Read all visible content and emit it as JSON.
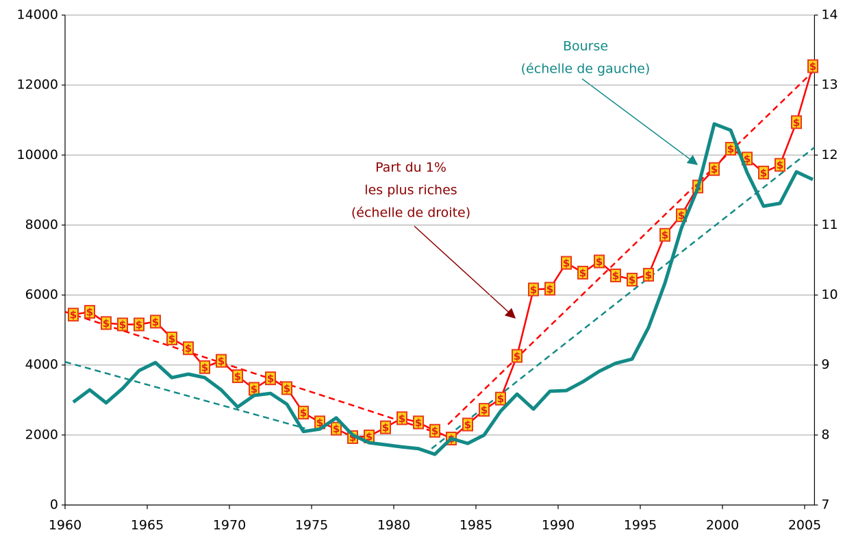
{
  "chart_data": {
    "type": "line",
    "x": [
      1960.5,
      1961.5,
      1962.5,
      1963.5,
      1964.5,
      1965.5,
      1966.5,
      1967.5,
      1968.5,
      1969.5,
      1970.5,
      1971.5,
      1972.5,
      1973.5,
      1974.5,
      1975.5,
      1976.5,
      1977.5,
      1978.5,
      1979.5,
      1980.5,
      1981.5,
      1982.5,
      1983.5,
      1984.5,
      1985.5,
      1986.5,
      1987.5,
      1988.5,
      1989.5,
      1990.5,
      1991.5,
      1992.5,
      1993.5,
      1994.5,
      1995.5,
      1996.5,
      1997.5,
      1998.5,
      1999.5,
      2000.5,
      2001.5,
      2002.5,
      2003.5,
      2004.5,
      2005.5
    ],
    "series": [
      {
        "color": "#ff0000",
        "axis": "y2",
        "marker": "$",
        "values": [
          9.72,
          9.76,
          9.6,
          9.58,
          9.58,
          9.62,
          9.38,
          9.24,
          8.97,
          9.06,
          8.84,
          8.66,
          8.81,
          8.67,
          8.32,
          8.18,
          8.09,
          7.97,
          7.98,
          8.11,
          8.24,
          8.18,
          8.06,
          7.95,
          8.15,
          8.36,
          8.52,
          9.13,
          10.08,
          10.09,
          10.46,
          10.32,
          10.48,
          10.28,
          10.22,
          10.29,
          10.86,
          11.14,
          11.55,
          11.8,
          12.09,
          11.95,
          11.75,
          11.86,
          12.47,
          13.27
        ]
      },
      {
        "color": "#138a87",
        "values": [
          2940,
          3290,
          2920,
          3330,
          3840,
          4070,
          3640,
          3740,
          3640,
          3290,
          2800,
          3130,
          3190,
          2880,
          2100,
          2170,
          2490,
          2000,
          1780,
          1720,
          1660,
          1610,
          1450,
          1900,
          1760,
          2000,
          2680,
          3170,
          2740,
          3250,
          3270,
          3520,
          3820,
          4050,
          4170,
          5070,
          6340,
          7910,
          9050,
          10890,
          10710,
          9500,
          8540,
          8620,
          9520,
          9300
        ]
      }
    ],
    "trends": [
      {
        "color": "#ff0000",
        "axis": "y2",
        "x": [
          1960,
          1983.3
        ],
        "values": [
          9.76,
          7.98
        ]
      },
      {
        "color": "#ff0000",
        "axis": "y2",
        "x": [
          1983.3,
          2005.5
        ],
        "values": [
          8.15,
          13.19
        ]
      },
      {
        "color": "#138a87",
        "x": [
          1960,
          1974.6
        ],
        "values": [
          4090,
          2190
        ]
      },
      {
        "color": "#138a87",
        "x": [
          1982.3,
          2005.6
        ],
        "values": [
          1610,
          10220
        ]
      }
    ],
    "annotations": [
      {
        "lines": [
          "Bourse",
          "(échelle de gauche)"
        ],
        "color": "#138a87"
      },
      {
        "lines": [
          "Part du 1%",
          "les plus riches",
          "(échelle de droite)"
        ],
        "color": "#8b0000"
      }
    ],
    "xlim": [
      1960,
      2005.6
    ],
    "xticks": [
      1960,
      1965,
      1970,
      1975,
      1980,
      1985,
      1990,
      1995,
      2000,
      2005
    ],
    "ylim": [
      0,
      14000
    ],
    "yticks": [
      0,
      2000,
      4000,
      6000,
      8000,
      10000,
      12000,
      14000
    ],
    "y2lim": [
      7,
      14
    ],
    "y2ticks": [
      7,
      8,
      9,
      10,
      11,
      12,
      13,
      14
    ],
    "grid": true
  }
}
